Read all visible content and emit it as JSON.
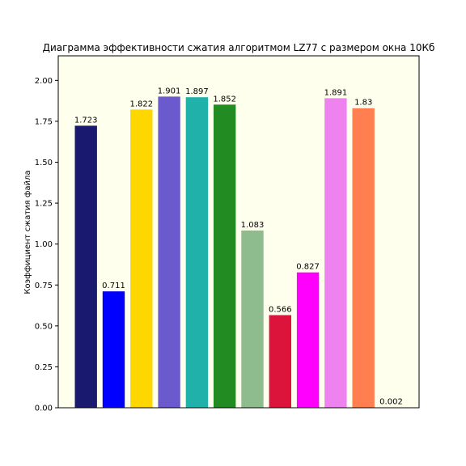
{
  "chart_data": {
    "type": "bar",
    "title": "Диаграмма эффективности сжатия алгоритмом LZ77 с размером окна 10Кб",
    "xlabel": "",
    "ylabel": "Коэффициент сжатия файла",
    "ylim": [
      0,
      2.15
    ],
    "yticks": [
      "0.00",
      "0.25",
      "0.50",
      "0.75",
      "1.00",
      "1.25",
      "1.50",
      "1.75",
      "2.00"
    ],
    "grid": false,
    "background": "#ffffee",
    "values": [
      1.723,
      0.711,
      1.822,
      1.901,
      1.897,
      1.852,
      1.083,
      0.566,
      0.827,
      1.891,
      1.83,
      0.002
    ],
    "labels": [
      "1.723",
      "0.711",
      "1.822",
      "1.901",
      "1.897",
      "1.852",
      "1.083",
      "0.566",
      "0.827",
      "1.891",
      "1.83",
      "0.002"
    ],
    "colors": [
      "#191970",
      "#0000ff",
      "#ffd700",
      "#6a5acd",
      "#20b2aa",
      "#228b22",
      "#8fbc8f",
      "#dc143c",
      "#ff00ff",
      "#ee82ee",
      "#ff7f50",
      "#2f4f4f"
    ]
  }
}
